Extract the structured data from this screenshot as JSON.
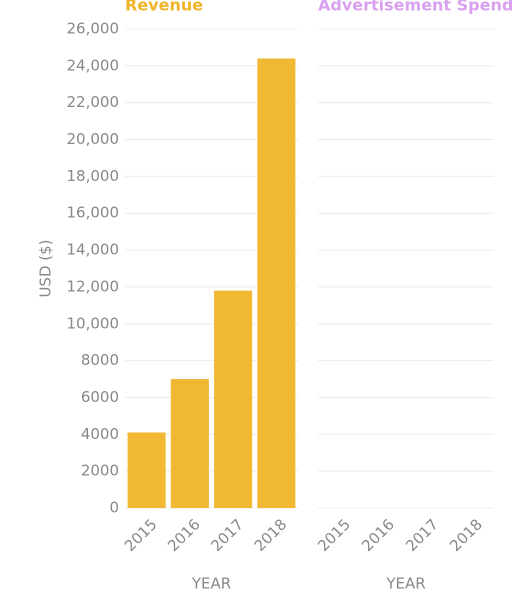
{
  "chart_data": [
    {
      "type": "bar",
      "title": "Revenue",
      "title_color": "#f0b429",
      "y_label": "USD ($)",
      "x_label": "YEAR",
      "categories": [
        "2015",
        "2016",
        "2017",
        "2018"
      ],
      "values": [
        4100,
        7000,
        11800,
        24400
      ],
      "color": "#f0b429",
      "ylim": [
        0,
        26000
      ],
      "yticks": [
        0,
        2000,
        4000,
        6000,
        8000,
        {
          "value": 10000,
          "label": "10,000"
        },
        {
          "value": 12000,
          "label": "12,000"
        },
        {
          "value": 14000,
          "label": "14,000"
        },
        {
          "value": 16000,
          "label": "16,000"
        },
        {
          "value": 18000,
          "label": "18,000"
        },
        {
          "value": 20000,
          "label": "20,000"
        },
        {
          "value": 22000,
          "label": "22,000"
        },
        {
          "value": 24000,
          "label": "24,000"
        },
        {
          "value": 26000,
          "label": "26,000"
        }
      ],
      "grid": true
    },
    {
      "type": "bar",
      "title": "Advertisement Spend",
      "title_color": "#d9a0f0",
      "x_label": "YEAR",
      "categories": [
        "2015",
        "2016",
        "2017",
        "2018"
      ],
      "grid": true
    }
  ]
}
